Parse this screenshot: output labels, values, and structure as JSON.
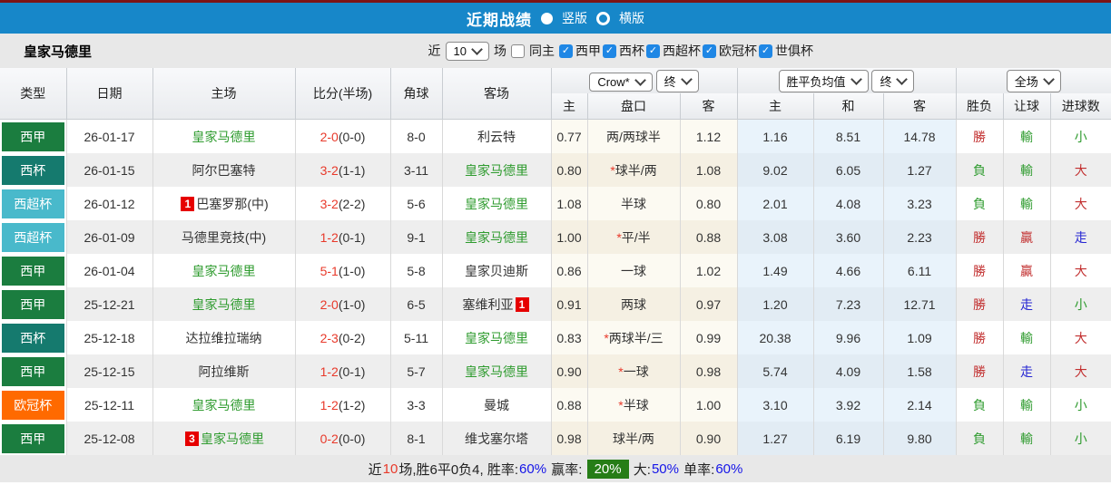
{
  "icons": {
    "check": "✓"
  },
  "colors": {
    "red": "#c22f2f",
    "green": "#2e9b2e",
    "blue": "#2727d3",
    "score_red": "#e8392a",
    "team_green": "#2e9b2e",
    "star_red": "#e8392a",
    "badge_bg": "#e60000",
    "badge_fg": "#ffffff",
    "footer_blue": "#1414e8",
    "footer_red": "#e8392a",
    "footer_green_bg": "#267d17"
  },
  "type_colors": {
    "西甲": "#1b7d3f",
    "西杯": "#157a6e",
    "西超杯": "#49b9cb",
    "欧冠杯": "#ff6a00"
  },
  "top_bar": {
    "title": "近期战绩",
    "vertical_label": "竖版",
    "horizontal_label": "横版"
  },
  "filter_bar": {
    "team": "皇家马德里",
    "near_label": "近",
    "count": "10",
    "games_label": "场",
    "same_home_label": "同主",
    "leagues": [
      "西甲",
      "西杯",
      "西超杯",
      "欧冠杯",
      "世俱杯"
    ]
  },
  "table": {
    "col_headers": [
      "类型",
      "日期",
      "主场",
      "比分(半场)",
      "角球",
      "客场"
    ],
    "sub_headers": [
      "主",
      "盘口",
      "客",
      "主",
      "和",
      "客",
      "胜负",
      "让球",
      "进球数"
    ],
    "dropdowns": {
      "company": "Crow*",
      "final1": "终",
      "avg": "胜平负均值",
      "final2": "终",
      "scope": "全场"
    },
    "rows": [
      {
        "type": "西甲",
        "date": "26-01-17",
        "home": {
          "text": "皇家马德里",
          "green": true,
          "badge": ""
        },
        "score": "2-0",
        "half": "(0-0)",
        "corner": "8-0",
        "away": {
          "text": "利云特",
          "green": false,
          "badge": ""
        },
        "crow": [
          "0.77",
          "两/两球半",
          "1.12"
        ],
        "avg": [
          "1.16",
          "8.51",
          "14.78"
        ],
        "res": [
          {
            "t": "勝",
            "c": "red"
          },
          {
            "t": "輸",
            "c": "green"
          },
          {
            "t": "小",
            "c": "green"
          }
        ]
      },
      {
        "type": "西杯",
        "date": "26-01-15",
        "home": {
          "text": "阿尔巴塞特",
          "green": false,
          "badge": ""
        },
        "score": "3-2",
        "half": "(1-1)",
        "corner": "3-11",
        "away": {
          "text": "皇家马德里",
          "green": true,
          "badge": ""
        },
        "crow": [
          "0.80",
          "*球半/两",
          "1.08"
        ],
        "avg": [
          "9.02",
          "6.05",
          "1.27"
        ],
        "res": [
          {
            "t": "負",
            "c": "green"
          },
          {
            "t": "輸",
            "c": "green"
          },
          {
            "t": "大",
            "c": "red"
          }
        ]
      },
      {
        "type": "西超杯",
        "date": "26-01-12",
        "home": {
          "text": "巴塞罗那(中)",
          "green": false,
          "badge": "1"
        },
        "score": "3-2",
        "half": "(2-2)",
        "corner": "5-6",
        "away": {
          "text": "皇家马德里",
          "green": true,
          "badge": ""
        },
        "crow": [
          "1.08",
          "半球",
          "0.80"
        ],
        "avg": [
          "2.01",
          "4.08",
          "3.23"
        ],
        "res": [
          {
            "t": "負",
            "c": "green"
          },
          {
            "t": "輸",
            "c": "green"
          },
          {
            "t": "大",
            "c": "red"
          }
        ]
      },
      {
        "type": "西超杯",
        "date": "26-01-09",
        "home": {
          "text": "马德里竞技(中)",
          "green": false,
          "badge": ""
        },
        "score": "1-2",
        "half": "(0-1)",
        "corner": "9-1",
        "away": {
          "text": "皇家马德里",
          "green": true,
          "badge": ""
        },
        "crow": [
          "1.00",
          "*平/半",
          "0.88"
        ],
        "avg": [
          "3.08",
          "3.60",
          "2.23"
        ],
        "res": [
          {
            "t": "勝",
            "c": "red"
          },
          {
            "t": "贏",
            "c": "red"
          },
          {
            "t": "走",
            "c": "blue"
          }
        ]
      },
      {
        "type": "西甲",
        "date": "26-01-04",
        "home": {
          "text": "皇家马德里",
          "green": true,
          "badge": ""
        },
        "score": "5-1",
        "half": "(1-0)",
        "corner": "5-8",
        "away": {
          "text": "皇家贝迪斯",
          "green": false,
          "badge": ""
        },
        "crow": [
          "0.86",
          "一球",
          "1.02"
        ],
        "avg": [
          "1.49",
          "4.66",
          "6.11"
        ],
        "res": [
          {
            "t": "勝",
            "c": "red"
          },
          {
            "t": "贏",
            "c": "red"
          },
          {
            "t": "大",
            "c": "red"
          }
        ]
      },
      {
        "type": "西甲",
        "date": "25-12-21",
        "home": {
          "text": "皇家马德里",
          "green": true,
          "badge": ""
        },
        "score": "2-0",
        "half": "(1-0)",
        "corner": "6-5",
        "away": {
          "text": "塞维利亚",
          "green": false,
          "badge": "1",
          "badge_after": true
        },
        "crow": [
          "0.91",
          "两球",
          "0.97"
        ],
        "avg": [
          "1.20",
          "7.23",
          "12.71"
        ],
        "res": [
          {
            "t": "勝",
            "c": "red"
          },
          {
            "t": "走",
            "c": "blue"
          },
          {
            "t": "小",
            "c": "green"
          }
        ]
      },
      {
        "type": "西杯",
        "date": "25-12-18",
        "home": {
          "text": "达拉维拉瑞纳",
          "green": false,
          "badge": ""
        },
        "score": "2-3",
        "half": "(0-2)",
        "corner": "5-11",
        "away": {
          "text": "皇家马德里",
          "green": true,
          "badge": ""
        },
        "crow": [
          "0.83",
          "*两球半/三",
          "0.99"
        ],
        "avg": [
          "20.38",
          "9.96",
          "1.09"
        ],
        "res": [
          {
            "t": "勝",
            "c": "red"
          },
          {
            "t": "輸",
            "c": "green"
          },
          {
            "t": "大",
            "c": "red"
          }
        ]
      },
      {
        "type": "西甲",
        "date": "25-12-15",
        "home": {
          "text": "阿拉维斯",
          "green": false,
          "badge": ""
        },
        "score": "1-2",
        "half": "(0-1)",
        "corner": "5-7",
        "away": {
          "text": "皇家马德里",
          "green": true,
          "badge": ""
        },
        "crow": [
          "0.90",
          "*一球",
          "0.98"
        ],
        "avg": [
          "5.74",
          "4.09",
          "1.58"
        ],
        "res": [
          {
            "t": "勝",
            "c": "red"
          },
          {
            "t": "走",
            "c": "blue"
          },
          {
            "t": "大",
            "c": "red"
          }
        ]
      },
      {
        "type": "欧冠杯",
        "date": "25-12-11",
        "home": {
          "text": "皇家马德里",
          "green": true,
          "badge": ""
        },
        "score": "1-2",
        "half": "(1-2)",
        "corner": "3-3",
        "away": {
          "text": "曼城",
          "green": false,
          "badge": ""
        },
        "crow": [
          "0.88",
          "*半球",
          "1.00"
        ],
        "avg": [
          "3.10",
          "3.92",
          "2.14"
        ],
        "res": [
          {
            "t": "負",
            "c": "green"
          },
          {
            "t": "輸",
            "c": "green"
          },
          {
            "t": "小",
            "c": "green"
          }
        ]
      },
      {
        "type": "西甲",
        "date": "25-12-08",
        "home": {
          "text": "皇家马德里",
          "green": true,
          "badge": "3"
        },
        "score": "0-2",
        "half": "(0-0)",
        "corner": "8-1",
        "away": {
          "text": "维戈塞尔塔",
          "green": false,
          "badge": ""
        },
        "crow": [
          "0.98",
          "球半/两",
          "0.90"
        ],
        "avg": [
          "1.27",
          "6.19",
          "9.80"
        ],
        "res": [
          {
            "t": "負",
            "c": "green"
          },
          {
            "t": "輸",
            "c": "green"
          },
          {
            "t": "小",
            "c": "green"
          }
        ]
      }
    ]
  },
  "footer": {
    "parts": [
      {
        "t": "近",
        "c": "k"
      },
      {
        "t": "10",
        "c": "r"
      },
      {
        "t": "场,胜6平0负4, 胜率:",
        "c": "k"
      },
      {
        "t": "60%",
        "c": "b"
      },
      {
        "t": " 赢率: ",
        "c": "k"
      },
      {
        "t": "20%",
        "c": "wg"
      },
      {
        "t": " 大:",
        "c": "k"
      },
      {
        "t": "50%",
        "c": "b"
      },
      {
        "t": " 单率:",
        "c": "k"
      },
      {
        "t": "60%",
        "c": "b"
      }
    ]
  }
}
